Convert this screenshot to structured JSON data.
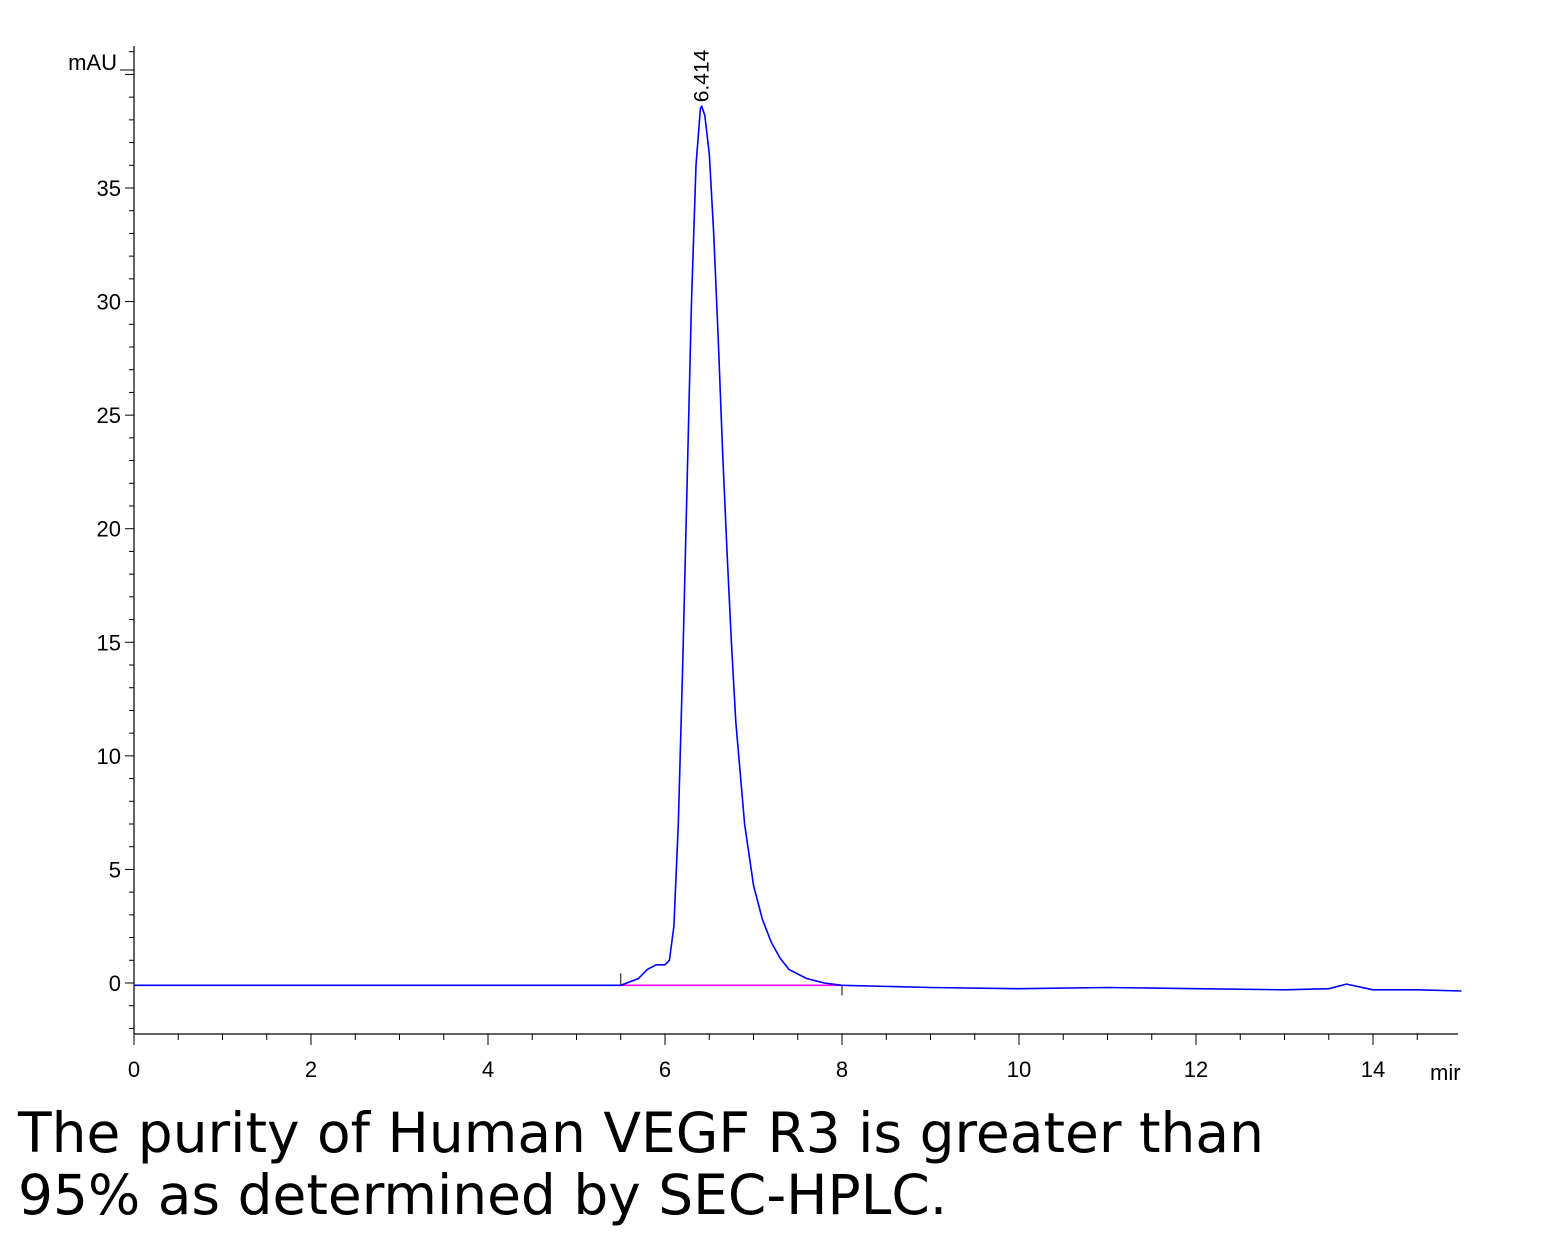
{
  "chart_data": {
    "type": "line",
    "title": "",
    "ylabel": "mAU",
    "xunit": "mir",
    "xlim": [
      0,
      15
    ],
    "ylim": [
      -2.3,
      41.5
    ],
    "x_ticks": [
      0,
      2,
      4,
      6,
      8,
      10,
      12,
      14
    ],
    "y_ticks": [
      0,
      5,
      10,
      15,
      20,
      25,
      30,
      35
    ],
    "grid": false,
    "legend": "none",
    "series": [
      {
        "color": "#0000ff",
        "x": [
          0,
          1,
          2,
          3,
          4,
          5,
          5.5,
          5.7,
          5.8,
          5.9,
          6.0,
          6.05,
          6.1,
          6.15,
          6.2,
          6.25,
          6.3,
          6.35,
          6.4,
          6.414,
          6.45,
          6.5,
          6.55,
          6.6,
          6.65,
          6.7,
          6.75,
          6.8,
          6.9,
          7.0,
          7.1,
          7.2,
          7.3,
          7.4,
          7.6,
          7.8,
          8.0,
          9,
          10,
          11,
          12,
          13,
          13.5,
          13.7,
          14,
          14.5,
          15
        ],
        "y": [
          -0.1,
          -0.1,
          -0.1,
          -0.1,
          -0.1,
          -0.1,
          -0.1,
          0.2,
          0.6,
          0.8,
          0.8,
          1.0,
          2.5,
          7,
          14,
          22,
          30,
          36,
          38.5,
          38.6,
          38.2,
          36.5,
          33,
          28.5,
          23.5,
          19,
          15,
          11.5,
          7,
          4.3,
          2.8,
          1.8,
          1.1,
          0.6,
          0.2,
          0.0,
          -0.1,
          -0.2,
          -0.25,
          -0.2,
          -0.25,
          -0.3,
          -0.25,
          -0.05,
          -0.3,
          -0.3,
          -0.35
        ]
      }
    ],
    "baseline": {
      "color": "#ff00ff",
      "x": [
        5.5,
        8.0
      ],
      "y": [
        -0.1,
        -0.1
      ]
    },
    "peak_label": {
      "text": "6.414",
      "x": 6.414,
      "y": 38.6
    }
  },
  "caption": {
    "line1": "The purity of Human VEGF R3 is greater than",
    "line2": "95% as determined by SEC-HPLC."
  }
}
